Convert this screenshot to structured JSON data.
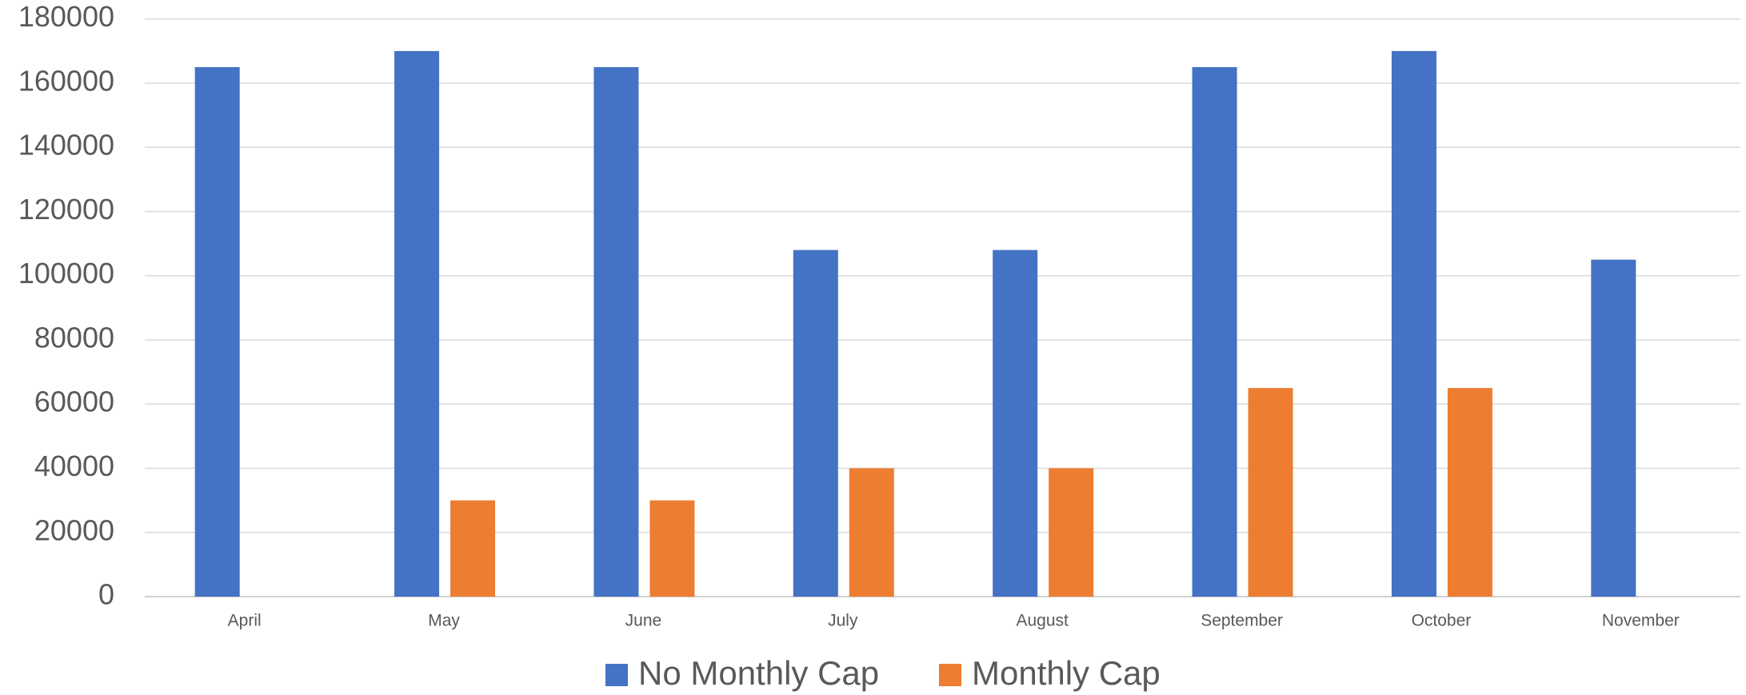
{
  "chart_data": {
    "type": "bar",
    "categories": [
      "April",
      "May",
      "June",
      "July",
      "August",
      "September",
      "October",
      "November"
    ],
    "series": [
      {
        "name": "No Monthly Cap",
        "color": "#4472c4",
        "values": [
          165000,
          170000,
          165000,
          108000,
          108000,
          165000,
          170000,
          105000
        ]
      },
      {
        "name": "Monthly Cap",
        "color": "#ed7d31",
        "values": [
          0,
          30000,
          30000,
          40000,
          40000,
          65000,
          65000,
          0
        ]
      }
    ],
    "ylim": [
      0,
      180000
    ],
    "yticks": [
      0,
      20000,
      40000,
      60000,
      80000,
      100000,
      120000,
      140000,
      160000,
      180000
    ],
    "grid": true,
    "legend": "bottom"
  }
}
